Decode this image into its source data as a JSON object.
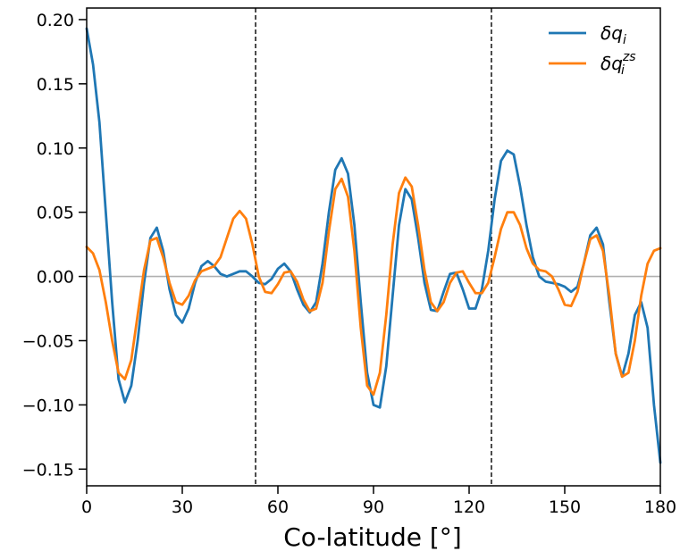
{
  "chart_data": {
    "type": "line",
    "title": "",
    "xlabel": "Co-latitude [°]",
    "ylabel": "",
    "xlim": [
      0,
      180
    ],
    "ylim": [
      -0.163,
      0.209
    ],
    "xticks": [
      0,
      30,
      60,
      90,
      120,
      150,
      180
    ],
    "xtick_labels": [
      "0",
      "30",
      "60",
      "90",
      "120",
      "150",
      "180"
    ],
    "yticks": [
      -0.15,
      -0.1,
      -0.05,
      0.0,
      0.05,
      0.1,
      0.15,
      0.2
    ],
    "ytick_labels": [
      "−0.15",
      "−0.10",
      "−0.05",
      "0.00",
      "0.05",
      "0.10",
      "0.15",
      "0.20"
    ],
    "grid": false,
    "legend_position": "top-right",
    "zero_line": 0,
    "zero_line_color": "#b0b0b0",
    "vertical_lines": [
      53,
      127
    ],
    "vertical_line_color": "#000000",
    "series": [
      {
        "name": "δq_i",
        "legend_label_main": "δq",
        "legend_label_sub": "i",
        "legend_label_sup": "",
        "color": "#1f77b4",
        "x": [
          0,
          2,
          4,
          6,
          8,
          10,
          12,
          14,
          16,
          18,
          20,
          22,
          24,
          26,
          28,
          30,
          32,
          34,
          36,
          38,
          40,
          42,
          44,
          46,
          48,
          50,
          52,
          54,
          56,
          58,
          60,
          62,
          64,
          66,
          68,
          70,
          72,
          74,
          76,
          78,
          80,
          82,
          84,
          86,
          88,
          90,
          92,
          94,
          96,
          98,
          100,
          102,
          104,
          106,
          108,
          110,
          112,
          114,
          116,
          118,
          120,
          122,
          124,
          126,
          128,
          130,
          132,
          134,
          136,
          138,
          140,
          142,
          144,
          146,
          148,
          150,
          152,
          154,
          156,
          158,
          160,
          162,
          164,
          166,
          168,
          170,
          172,
          174,
          176,
          178,
          180
        ],
        "y": [
          0.193,
          0.165,
          0.12,
          0.05,
          -0.02,
          -0.08,
          -0.098,
          -0.085,
          -0.05,
          -0.005,
          0.03,
          0.038,
          0.02,
          -0.01,
          -0.03,
          -0.036,
          -0.025,
          -0.005,
          0.008,
          0.012,
          0.008,
          0.002,
          0.0,
          0.002,
          0.004,
          0.004,
          0.0,
          -0.005,
          -0.006,
          -0.002,
          0.006,
          0.01,
          0.004,
          -0.01,
          -0.022,
          -0.028,
          -0.02,
          0.01,
          0.05,
          0.083,
          0.092,
          0.08,
          0.04,
          -0.02,
          -0.075,
          -0.1,
          -0.102,
          -0.07,
          -0.015,
          0.04,
          0.068,
          0.06,
          0.03,
          -0.005,
          -0.026,
          -0.027,
          -0.012,
          0.002,
          0.003,
          -0.01,
          -0.025,
          -0.025,
          -0.01,
          0.02,
          0.06,
          0.09,
          0.098,
          0.095,
          0.07,
          0.04,
          0.015,
          0.0,
          -0.004,
          -0.005,
          -0.006,
          -0.008,
          -0.012,
          -0.008,
          0.01,
          0.032,
          0.038,
          0.025,
          -0.02,
          -0.06,
          -0.078,
          -0.06,
          -0.03,
          -0.02,
          -0.04,
          -0.1,
          -0.145
        ]
      },
      {
        "name": "δq_i^zs",
        "legend_label_main": "δq",
        "legend_label_sub": "i",
        "legend_label_sup": "zs",
        "color": "#ff7f0e",
        "x": [
          0,
          2,
          4,
          6,
          8,
          10,
          12,
          14,
          16,
          18,
          20,
          22,
          24,
          26,
          28,
          30,
          32,
          34,
          36,
          38,
          40,
          42,
          44,
          46,
          48,
          50,
          52,
          54,
          56,
          58,
          60,
          62,
          64,
          66,
          68,
          70,
          72,
          74,
          76,
          78,
          80,
          82,
          84,
          86,
          88,
          90,
          92,
          94,
          96,
          98,
          100,
          102,
          104,
          106,
          108,
          110,
          112,
          114,
          116,
          118,
          120,
          122,
          124,
          126,
          128,
          130,
          132,
          134,
          136,
          138,
          140,
          142,
          144,
          146,
          148,
          150,
          152,
          154,
          156,
          158,
          160,
          162,
          164,
          166,
          168,
          170,
          172,
          174,
          176,
          178,
          180
        ],
        "y": [
          0.023,
          0.018,
          0.005,
          -0.02,
          -0.05,
          -0.075,
          -0.08,
          -0.065,
          -0.03,
          0.005,
          0.028,
          0.03,
          0.015,
          -0.005,
          -0.02,
          -0.022,
          -0.015,
          -0.003,
          0.004,
          0.006,
          0.008,
          0.015,
          0.03,
          0.045,
          0.051,
          0.045,
          0.025,
          0.0,
          -0.012,
          -0.013,
          -0.006,
          0.003,
          0.004,
          -0.004,
          -0.018,
          -0.027,
          -0.025,
          -0.005,
          0.035,
          0.068,
          0.076,
          0.062,
          0.02,
          -0.04,
          -0.085,
          -0.092,
          -0.075,
          -0.03,
          0.025,
          0.065,
          0.077,
          0.07,
          0.04,
          0.005,
          -0.02,
          -0.027,
          -0.02,
          -0.005,
          0.003,
          0.004,
          -0.005,
          -0.013,
          -0.013,
          -0.005,
          0.015,
          0.037,
          0.05,
          0.05,
          0.04,
          0.022,
          0.01,
          0.005,
          0.004,
          0.0,
          -0.01,
          -0.022,
          -0.023,
          -0.012,
          0.01,
          0.029,
          0.032,
          0.02,
          -0.015,
          -0.06,
          -0.078,
          -0.075,
          -0.05,
          -0.015,
          0.01,
          0.02,
          0.022
        ]
      }
    ]
  }
}
